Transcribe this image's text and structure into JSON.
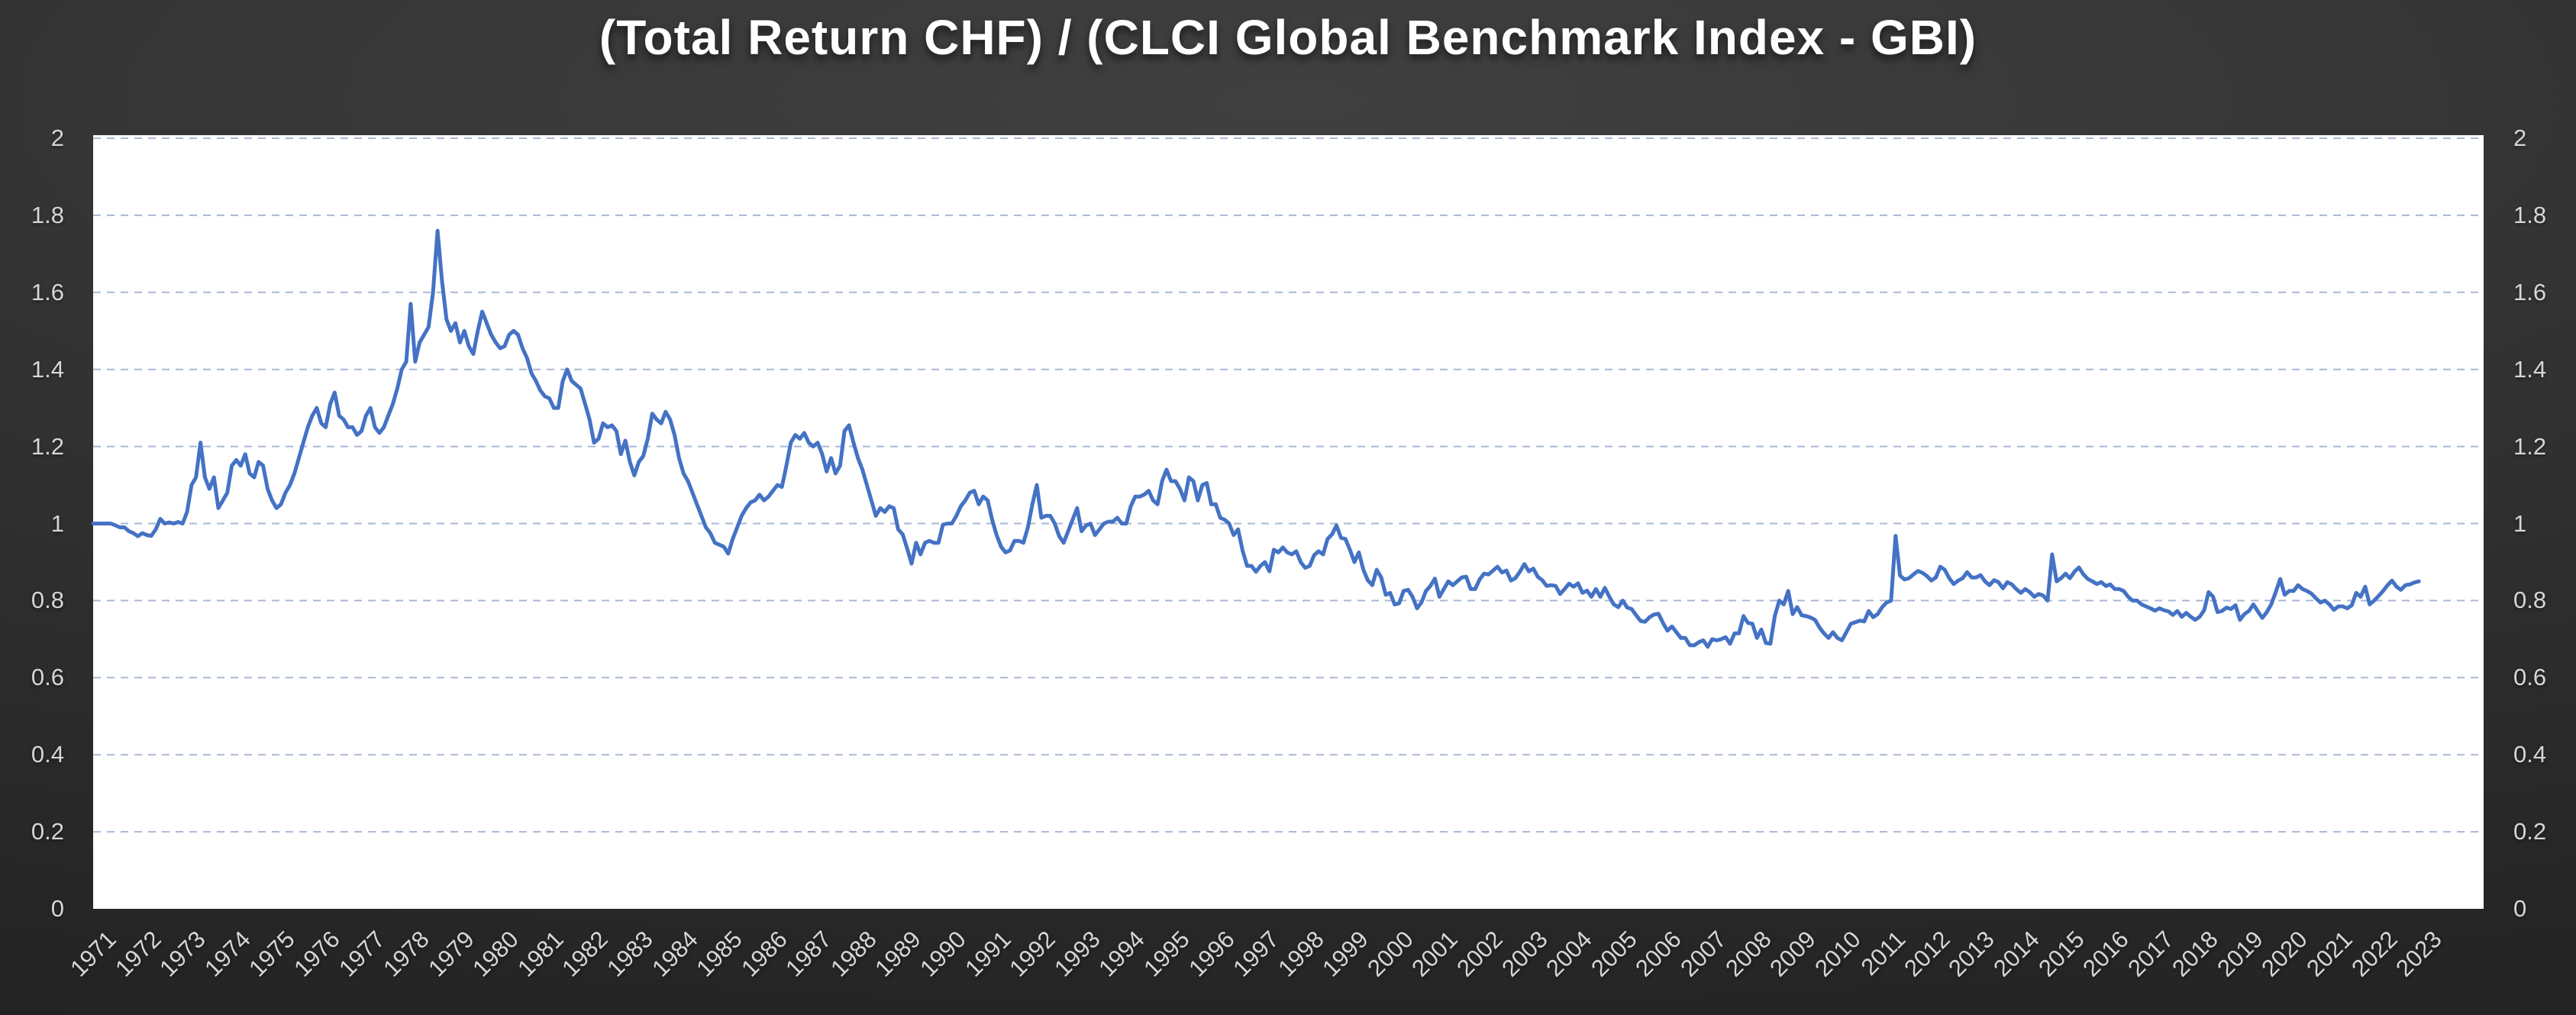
{
  "title": "(Total Return CHF) / (CLCI Global Benchmark Index - GBI)",
  "colors": {
    "background_center": "#404040",
    "background_edge": "#202020",
    "plot_background": "#ffffff",
    "gridline": "#a9b8d6",
    "series_line": "#4472c4",
    "axis_label": "#d6d6d6",
    "title_text": "#ffffff"
  },
  "y_tick_labels": [
    "2",
    "1.8",
    "1.6",
    "1.4",
    "1.2",
    "1",
    "0.8",
    "0.6",
    "0.4",
    "0.2",
    "0"
  ],
  "x_tick_labels": [
    "1971",
    "1972",
    "1973",
    "1974",
    "1975",
    "1976",
    "1977",
    "1978",
    "1979",
    "1980",
    "1981",
    "1982",
    "1983",
    "1984",
    "1985",
    "1986",
    "1987",
    "1988",
    "1989",
    "1990",
    "1991",
    "1992",
    "1993",
    "1994",
    "1995",
    "1996",
    "1997",
    "1998",
    "1999",
    "2000",
    "2001",
    "2002",
    "2003",
    "2004",
    "2005",
    "2006",
    "2007",
    "2008",
    "2009",
    "2010",
    "2011",
    "2012",
    "2013",
    "2014",
    "2015",
    "2016",
    "2017",
    "2018",
    "2019",
    "2020",
    "2021",
    "2022",
    "2023"
  ],
  "chart_data": {
    "type": "line",
    "title": "(Total Return CHF) / (CLCI Global Benchmark Index - GBI)",
    "xlabel": "",
    "ylabel": "",
    "ylim": [
      0,
      2
    ],
    "y_tick_step": 0.2,
    "xlim_years": [
      1971,
      2024.5
    ],
    "grid": "horizontal-dashed",
    "legend": "none",
    "axis_label_sides": [
      "left",
      "right"
    ],
    "series": [
      {
        "name": "(Total Return CHF) / (CLCI Global Benchmark Index - GBI)",
        "x_start_year": 1971.0,
        "x_step_years": 0.1,
        "values": [
          1.0,
          1.0,
          1.0,
          1.0,
          1.0,
          0.995,
          0.99,
          0.99,
          0.98,
          0.975,
          0.967,
          0.975,
          0.97,
          0.968,
          0.985,
          1.012,
          1.0,
          1.003,
          1.0,
          1.004,
          1.0,
          1.03,
          1.1,
          1.12,
          1.21,
          1.12,
          1.09,
          1.12,
          1.04,
          1.06,
          1.08,
          1.15,
          1.165,
          1.15,
          1.18,
          1.13,
          1.12,
          1.16,
          1.15,
          1.09,
          1.06,
          1.04,
          1.05,
          1.08,
          1.1,
          1.13,
          1.17,
          1.21,
          1.25,
          1.28,
          1.3,
          1.26,
          1.25,
          1.31,
          1.34,
          1.28,
          1.27,
          1.25,
          1.25,
          1.23,
          1.24,
          1.28,
          1.3,
          1.25,
          1.235,
          1.25,
          1.28,
          1.31,
          1.35,
          1.4,
          1.42,
          1.57,
          1.42,
          1.47,
          1.49,
          1.51,
          1.6,
          1.76,
          1.63,
          1.53,
          1.5,
          1.52,
          1.47,
          1.5,
          1.46,
          1.44,
          1.5,
          1.55,
          1.52,
          1.49,
          1.47,
          1.455,
          1.46,
          1.49,
          1.5,
          1.49,
          1.455,
          1.43,
          1.39,
          1.37,
          1.345,
          1.33,
          1.325,
          1.3,
          1.3,
          1.37,
          1.4,
          1.37,
          1.36,
          1.35,
          1.31,
          1.27,
          1.21,
          1.22,
          1.26,
          1.25,
          1.255,
          1.24,
          1.18,
          1.215,
          1.16,
          1.125,
          1.16,
          1.175,
          1.22,
          1.285,
          1.27,
          1.26,
          1.29,
          1.27,
          1.23,
          1.17,
          1.13,
          1.11,
          1.08,
          1.05,
          1.02,
          0.99,
          0.975,
          0.95,
          0.945,
          0.94,
          0.922,
          0.96,
          0.99,
          1.02,
          1.04,
          1.055,
          1.06,
          1.075,
          1.06,
          1.07,
          1.085,
          1.1,
          1.095,
          1.15,
          1.21,
          1.23,
          1.22,
          1.235,
          1.21,
          1.2,
          1.21,
          1.18,
          1.135,
          1.17,
          1.13,
          1.15,
          1.24,
          1.255,
          1.21,
          1.17,
          1.14,
          1.1,
          1.06,
          1.02,
          1.04,
          1.03,
          1.045,
          1.04,
          0.985,
          0.972,
          0.935,
          0.896,
          0.95,
          0.92,
          0.95,
          0.955,
          0.95,
          0.95,
          0.997,
          1.0,
          1.0,
          1.02,
          1.045,
          1.06,
          1.08,
          1.085,
          1.05,
          1.07,
          1.06,
          1.01,
          0.97,
          0.94,
          0.925,
          0.93,
          0.955,
          0.955,
          0.95,
          0.99,
          1.05,
          1.1,
          1.015,
          1.02,
          1.02,
          1.0,
          0.967,
          0.95,
          0.98,
          1.01,
          1.04,
          0.98,
          0.995,
          1.0,
          0.97,
          0.985,
          1.0,
          1.005,
          1.005,
          1.015,
          1.0,
          1.0,
          1.045,
          1.07,
          1.07,
          1.075,
          1.085,
          1.06,
          1.05,
          1.11,
          1.14,
          1.11,
          1.11,
          1.09,
          1.06,
          1.12,
          1.11,
          1.06,
          1.1,
          1.105,
          1.05,
          1.05,
          1.015,
          1.01,
          1.0,
          0.97,
          0.985,
          0.93,
          0.89,
          0.89,
          0.875,
          0.89,
          0.9,
          0.876,
          0.932,
          0.925,
          0.938,
          0.925,
          0.92,
          0.928,
          0.9,
          0.885,
          0.89,
          0.918,
          0.928,
          0.92,
          0.96,
          0.972,
          0.995,
          0.963,
          0.96,
          0.932,
          0.9,
          0.925,
          0.88,
          0.853,
          0.84,
          0.88,
          0.86,
          0.815,
          0.82,
          0.79,
          0.793,
          0.825,
          0.828,
          0.81,
          0.78,
          0.795,
          0.825,
          0.838,
          0.857,
          0.81,
          0.83,
          0.85,
          0.84,
          0.85,
          0.86,
          0.862,
          0.83,
          0.83,
          0.855,
          0.87,
          0.868,
          0.878,
          0.888,
          0.873,
          0.878,
          0.852,
          0.858,
          0.875,
          0.895,
          0.876,
          0.883,
          0.862,
          0.853,
          0.838,
          0.84,
          0.838,
          0.817,
          0.83,
          0.844,
          0.836,
          0.845,
          0.82,
          0.826,
          0.81,
          0.83,
          0.81,
          0.833,
          0.81,
          0.79,
          0.783,
          0.8,
          0.782,
          0.778,
          0.762,
          0.747,
          0.745,
          0.757,
          0.764,
          0.766,
          0.742,
          0.722,
          0.733,
          0.718,
          0.703,
          0.703,
          0.684,
          0.684,
          0.692,
          0.697,
          0.68,
          0.7,
          0.697,
          0.7,
          0.705,
          0.688,
          0.715,
          0.715,
          0.76,
          0.742,
          0.74,
          0.703,
          0.725,
          0.69,
          0.688,
          0.76,
          0.8,
          0.79,
          0.825,
          0.765,
          0.783,
          0.762,
          0.76,
          0.756,
          0.75,
          0.73,
          0.715,
          0.703,
          0.718,
          0.703,
          0.697,
          0.718,
          0.74,
          0.744,
          0.748,
          0.746,
          0.773,
          0.757,
          0.765,
          0.783,
          0.795,
          0.8,
          0.968,
          0.865,
          0.855,
          0.858,
          0.868,
          0.877,
          0.872,
          0.864,
          0.852,
          0.86,
          0.888,
          0.88,
          0.858,
          0.843,
          0.852,
          0.858,
          0.874,
          0.86,
          0.86,
          0.866,
          0.85,
          0.84,
          0.853,
          0.848,
          0.832,
          0.848,
          0.842,
          0.83,
          0.82,
          0.83,
          0.822,
          0.81,
          0.817,
          0.813,
          0.8,
          0.92,
          0.85,
          0.858,
          0.87,
          0.858,
          0.875,
          0.886,
          0.868,
          0.856,
          0.85,
          0.843,
          0.848,
          0.838,
          0.842,
          0.83,
          0.83,
          0.825,
          0.81,
          0.8,
          0.8,
          0.79,
          0.785,
          0.78,
          0.774,
          0.78,
          0.775,
          0.772,
          0.763,
          0.773,
          0.758,
          0.768,
          0.758,
          0.75,
          0.758,
          0.775,
          0.822,
          0.81,
          0.77,
          0.773,
          0.782,
          0.778,
          0.788,
          0.75,
          0.765,
          0.773,
          0.79,
          0.772,
          0.755,
          0.77,
          0.79,
          0.822,
          0.856,
          0.815,
          0.825,
          0.825,
          0.84,
          0.83,
          0.825,
          0.818,
          0.806,
          0.795,
          0.8,
          0.79,
          0.776,
          0.785,
          0.785,
          0.78,
          0.788,
          0.82,
          0.81,
          0.836,
          0.79,
          0.8,
          0.812,
          0.825,
          0.84,
          0.852,
          0.836,
          0.828,
          0.84,
          0.842,
          0.847,
          0.85
        ]
      }
    ]
  }
}
